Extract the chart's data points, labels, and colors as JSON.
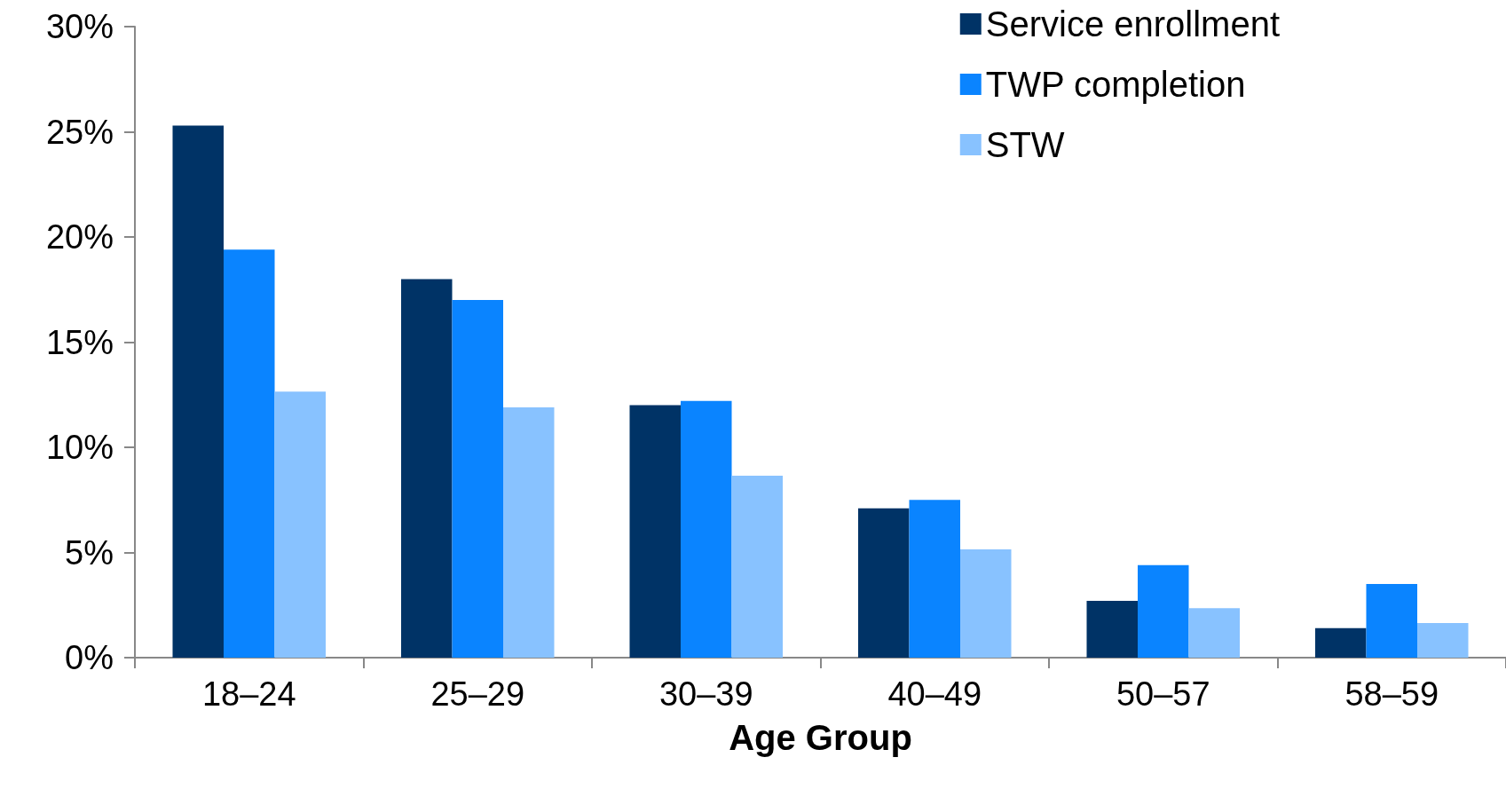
{
  "chart_data": {
    "type": "bar",
    "xlabel": "Age Group",
    "categories": [
      "18–24",
      "25–29",
      "30–39",
      "40–49",
      "50–57",
      "58–59"
    ],
    "series": [
      {
        "name": "Service enrollment",
        "color": "#003366",
        "values": [
          25.3,
          18.0,
          12.0,
          7.1,
          2.7,
          1.4
        ]
      },
      {
        "name": "TWP completion",
        "color": "#0a84ff",
        "values": [
          19.4,
          17.0,
          12.2,
          7.5,
          4.4,
          3.5
        ]
      },
      {
        "name": "STW",
        "color": "#88c2ff",
        "values": [
          12.65,
          11.9,
          8.65,
          5.15,
          2.35,
          1.65
        ]
      }
    ],
    "ylim": [
      0,
      30
    ],
    "yticks": [
      {
        "value": 0,
        "label": "0%"
      },
      {
        "value": 5,
        "label": "5%"
      },
      {
        "value": 10,
        "label": "10%"
      },
      {
        "value": 15,
        "label": "15%"
      },
      {
        "value": 20,
        "label": "20%"
      },
      {
        "value": 25,
        "label": "25%"
      },
      {
        "value": 30,
        "label": "30%"
      }
    ],
    "grid": false,
    "legend": "top right"
  }
}
